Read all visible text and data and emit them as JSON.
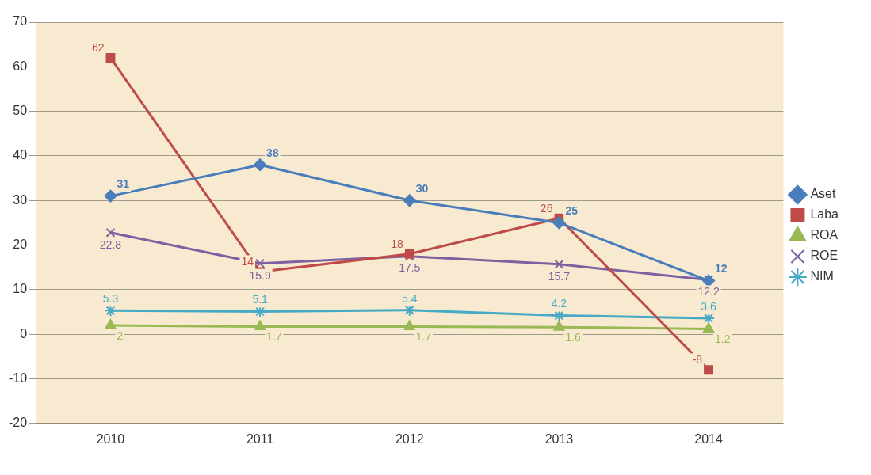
{
  "chart_data": {
    "type": "line",
    "categories": [
      "2010",
      "2011",
      "2012",
      "2013",
      "2014"
    ],
    "series": [
      {
        "name": "Aset",
        "color": "#4a7ebb",
        "marker": "diamond",
        "values": [
          31,
          38,
          30,
          25,
          12
        ]
      },
      {
        "name": "Laba",
        "color": "#be4b48",
        "marker": "square",
        "values": [
          62,
          14,
          18,
          26,
          -8
        ]
      },
      {
        "name": "ROA",
        "color": "#98b954",
        "marker": "triangle",
        "values": [
          2,
          1.7,
          1.7,
          1.6,
          1.2
        ]
      },
      {
        "name": "ROE",
        "color": "#7d60a0",
        "marker": "cross",
        "values": [
          22.8,
          15.9,
          17.5,
          15.7,
          12.2
        ]
      },
      {
        "name": "NIM",
        "color": "#46aac5",
        "marker": "cross",
        "values": [
          5.3,
          5.1,
          5.4,
          4.2,
          3.6
        ]
      }
    ],
    "ylim": [
      -20,
      70
    ],
    "yticks": [
      -20,
      -10,
      0,
      10,
      20,
      30,
      40,
      50,
      60,
      70
    ],
    "grid": "y",
    "legend": "right",
    "data_labels": true
  }
}
